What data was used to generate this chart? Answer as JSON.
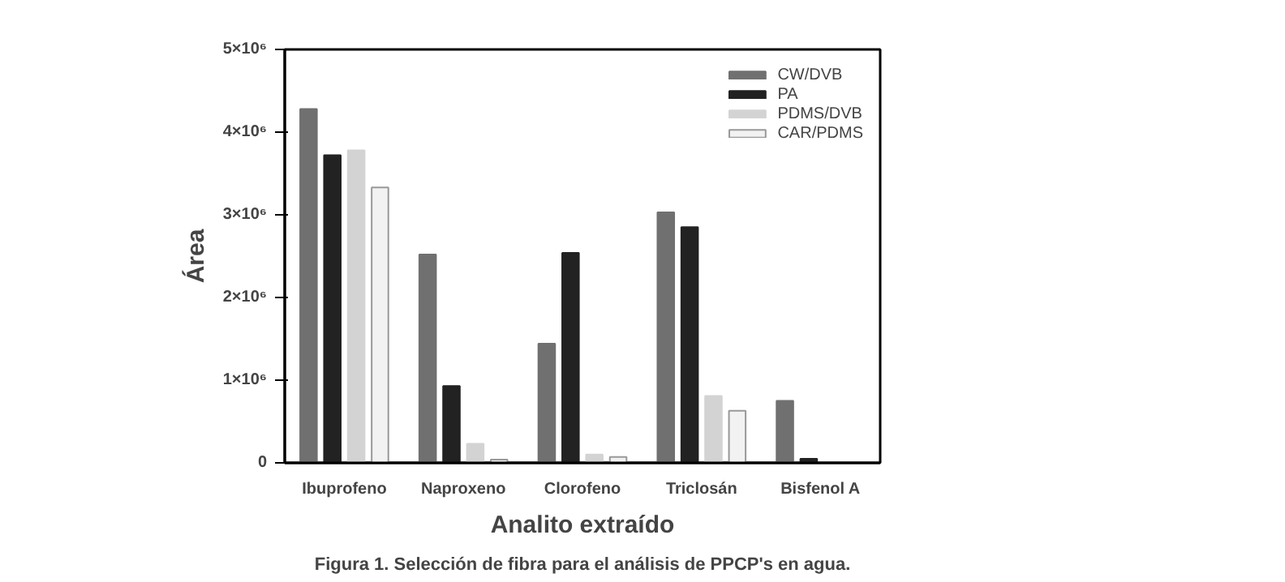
{
  "chart_data": {
    "type": "bar",
    "categories": [
      "Ibuprofeno",
      "Naproxeno",
      "Clorofeno",
      "Triclosán",
      "Bisfenol A"
    ],
    "series": [
      {
        "name": "CW/DVB",
        "color": "#707070",
        "values": [
          4280000,
          2520000,
          1440000,
          3030000,
          750000
        ]
      },
      {
        "name": "PA",
        "color": "#222222",
        "values": [
          3720000,
          930000,
          2540000,
          2850000,
          50000
        ]
      },
      {
        "name": "PDMS/DVB",
        "color": "#d3d3d3",
        "values": [
          3780000,
          230000,
          100000,
          810000,
          0
        ]
      },
      {
        "name": "CAR/PDMS",
        "color": "#f2f2f2",
        "values": [
          3330000,
          40000,
          70000,
          630000,
          0
        ]
      }
    ],
    "xlabel": "Analito extraído",
    "ylabel": "Área",
    "ylim": [
      0,
      5000000
    ],
    "yticks": [
      0,
      {
        "value": 1000000,
        "label": "1×10⁶"
      },
      {
        "value": 2000000,
        "label": "2×10⁶"
      },
      {
        "value": 3000000,
        "label": "3×10⁶"
      },
      {
        "value": 4000000,
        "label": "4×10⁶"
      },
      {
        "value": 5000000,
        "label": "5×10⁶"
      }
    ],
    "grid": false,
    "legend": "top right",
    "annotations": [
      "Figura 1. Selección de fibra para el análisis de PPCP's en agua."
    ]
  }
}
